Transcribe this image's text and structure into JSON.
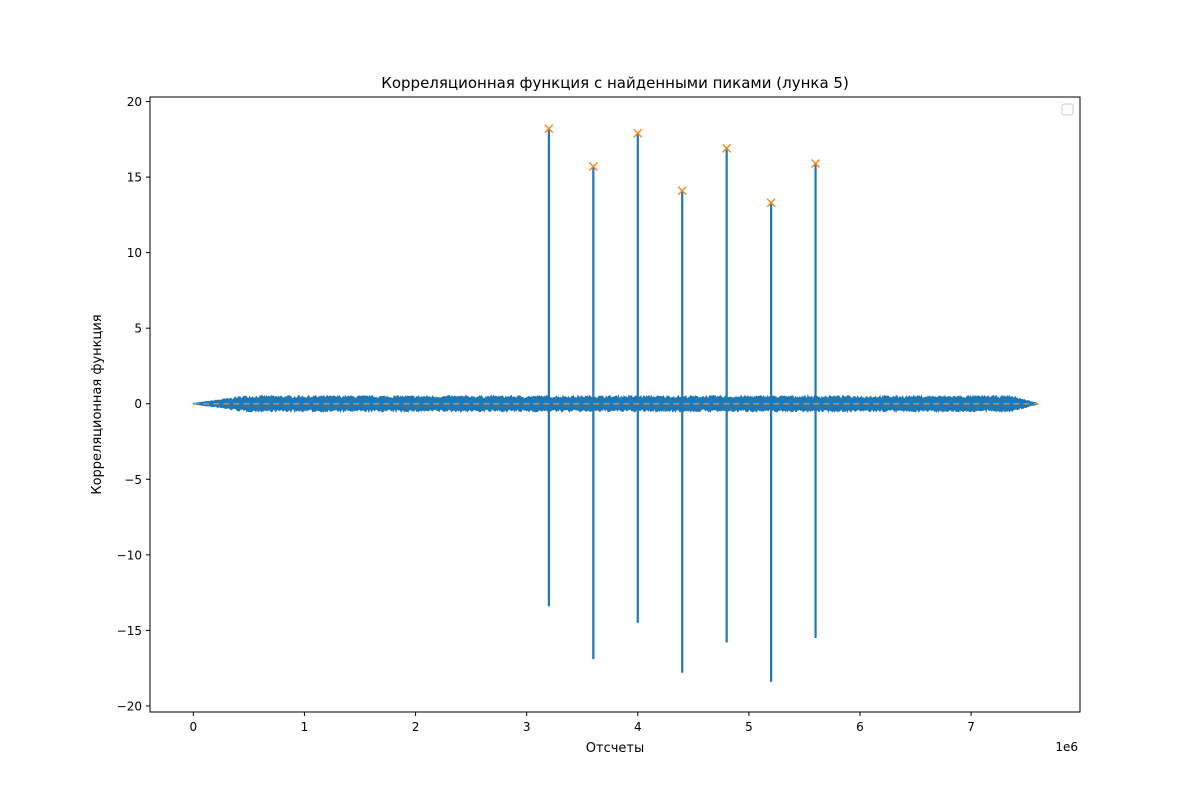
{
  "chart_data": {
    "type": "line",
    "title": "Корреляционная функция с найденными пиками (лунка 5)",
    "xlabel": "Отсчеты",
    "ylabel": "Корреляционная функция",
    "x_offset_label": "1e6",
    "xlim": [
      -0.39,
      7.98
    ],
    "ylim": [
      -20.4,
      20.3
    ],
    "x_ticks": [
      0,
      1,
      2,
      3,
      4,
      5,
      6,
      7
    ],
    "x_tick_labels": [
      "0",
      "1",
      "2",
      "3",
      "4",
      "5",
      "6",
      "7"
    ],
    "y_ticks": [
      -20,
      -15,
      -10,
      -5,
      0,
      5,
      10,
      15,
      20
    ],
    "y_tick_labels": [
      "−20",
      "−15",
      "−10",
      "−5",
      "0",
      "5",
      "10",
      "15",
      "20"
    ],
    "grid": false,
    "legend": {
      "placement": "top-right",
      "entries": []
    },
    "colors": {
      "signal": "#1f77b4",
      "peaks": "#ff7f0e",
      "zero_line": "#ff7f0e"
    },
    "series": [
      {
        "kind": "signal",
        "x_range": [
          0,
          7.6
        ],
        "baseline_amplitude": 0.45,
        "spikes": [
          {
            "x": 3.2,
            "max": 18.2,
            "min": -13.4
          },
          {
            "x": 3.6,
            "max": 15.7,
            "min": -16.9
          },
          {
            "x": 4.0,
            "max": 17.9,
            "min": -14.5
          },
          {
            "x": 4.4,
            "max": 14.1,
            "min": -17.8
          },
          {
            "x": 4.8,
            "max": 16.9,
            "min": -15.8
          },
          {
            "x": 5.2,
            "max": 13.3,
            "min": -18.4
          },
          {
            "x": 5.6,
            "max": 15.9,
            "min": -15.5
          }
        ]
      },
      {
        "kind": "peaks",
        "marker": "x",
        "points": [
          {
            "x": 3.2,
            "y": 18.2
          },
          {
            "x": 3.6,
            "y": 15.7
          },
          {
            "x": 4.0,
            "y": 17.9
          },
          {
            "x": 4.4,
            "y": 14.1
          },
          {
            "x": 4.8,
            "y": 16.9
          },
          {
            "x": 5.2,
            "y": 13.3
          },
          {
            "x": 5.6,
            "y": 15.9
          }
        ]
      },
      {
        "kind": "zero_line",
        "y": 0,
        "style": "dashed"
      }
    ]
  }
}
